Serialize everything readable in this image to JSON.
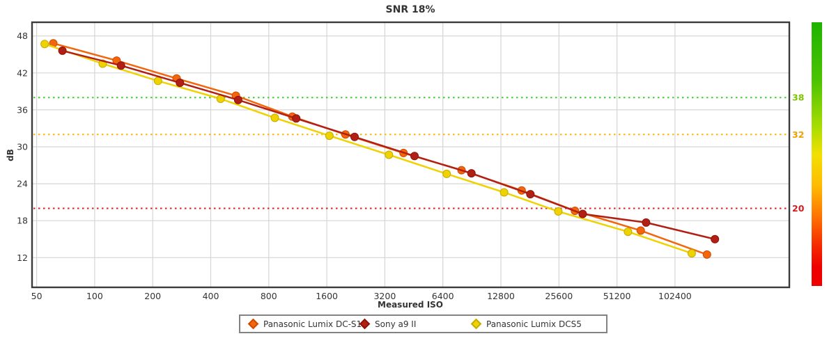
{
  "title": "SNR 18%",
  "chart_data": {
    "type": "line",
    "title": "SNR 18%",
    "xlabel": "Measured ISO",
    "ylabel": "dB",
    "x_scale": "log2",
    "x_domain": [
      47,
      400000
    ],
    "y_domain": [
      7.2,
      50.2
    ],
    "grid": true,
    "legend_position": "bottom",
    "x_ticks": [
      50,
      100,
      200,
      400,
      800,
      1600,
      3200,
      6400,
      12800,
      25600,
      51200,
      102400
    ],
    "y_ticks": [
      48,
      42,
      36,
      30,
      24,
      18,
      12
    ],
    "reference_lines": [
      {
        "value": 38,
        "label": "38",
        "line_color": "#3fd02c",
        "label_color": "#7cc400"
      },
      {
        "value": 32,
        "label": "32",
        "line_color": "#ffb400",
        "label_color": "#f0a000"
      },
      {
        "value": 20,
        "label": "20",
        "line_color": "#e01c1c",
        "label_color": "#d41c1c"
      }
    ],
    "series": [
      {
        "name": "Panasonic Lumix DC-S1",
        "color": "#f2660e",
        "marker_stroke": "#cf4a00",
        "points": [
          [
            61,
            46.8
          ],
          [
            130,
            44.0
          ],
          [
            266,
            41.1
          ],
          [
            540,
            38.3
          ],
          [
            1060,
            34.9
          ],
          [
            2000,
            32.0
          ],
          [
            4000,
            29.0
          ],
          [
            8000,
            26.2
          ],
          [
            16400,
            22.9
          ],
          [
            31000,
            19.6
          ],
          [
            68000,
            16.4
          ],
          [
            150000,
            12.5
          ]
        ]
      },
      {
        "name": "Sony a9 II",
        "color": "#b22015",
        "marker_stroke": "#8c130a",
        "points": [
          [
            68,
            45.6
          ],
          [
            137,
            43.2
          ],
          [
            277,
            40.4
          ],
          [
            555,
            37.6
          ],
          [
            1110,
            34.6
          ],
          [
            2230,
            31.6
          ],
          [
            4560,
            28.5
          ],
          [
            9000,
            25.7
          ],
          [
            18200,
            22.3
          ],
          [
            34000,
            19.1
          ],
          [
            72500,
            17.7
          ],
          [
            165000,
            15.0
          ]
        ]
      },
      {
        "name": "Panasonic Lumix DCS5",
        "color": "#eed202",
        "marker_stroke": "#c4ac00",
        "points": [
          [
            55,
            46.7
          ],
          [
            110,
            43.5
          ],
          [
            213,
            40.7
          ],
          [
            450,
            37.8
          ],
          [
            860,
            34.7
          ],
          [
            1650,
            31.8
          ],
          [
            3360,
            28.7
          ],
          [
            6700,
            25.6
          ],
          [
            13300,
            22.6
          ],
          [
            25400,
            19.5
          ],
          [
            58400,
            16.2
          ],
          [
            125000,
            12.7
          ]
        ]
      }
    ],
    "draw_order": [
      0,
      2,
      1
    ],
    "line_width": 2.5,
    "marker": "circle",
    "marker_radius": 5.5,
    "gradient_bar": {
      "position": "right",
      "stops": [
        {
          "offset": 0.0,
          "color": "#1eb300"
        },
        {
          "offset": 0.22,
          "color": "#4cc300"
        },
        {
          "offset": 0.4,
          "color": "#aadd00"
        },
        {
          "offset": 0.5,
          "color": "#f2e000"
        },
        {
          "offset": 0.62,
          "color": "#ffbb00"
        },
        {
          "offset": 0.73,
          "color": "#ff7700"
        },
        {
          "offset": 0.85,
          "color": "#f52800"
        },
        {
          "offset": 0.93,
          "color": "#ee0000"
        },
        {
          "offset": 1.0,
          "color": "#ee0000"
        }
      ]
    },
    "colors": {
      "grid": "#d5d5d5",
      "plot_border": "#3a3a3a",
      "tick_label": "#333333",
      "background": "#ffffff"
    }
  }
}
